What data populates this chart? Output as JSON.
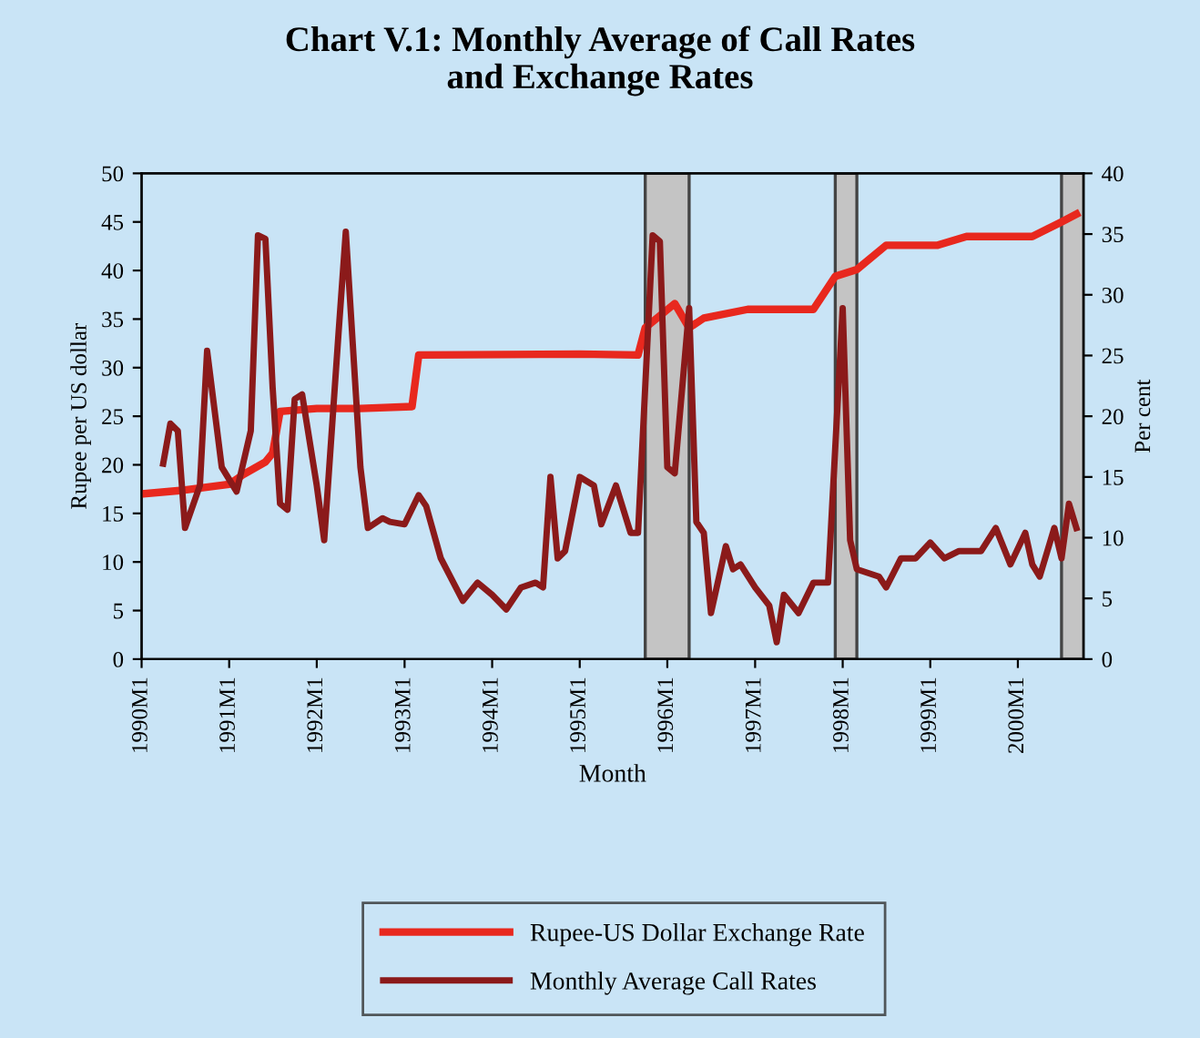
{
  "chart_data": {
    "type": "line",
    "title": "Chart V.1: Monthly Average of Call Rates\nand Exchange Rates",
    "xlabel": "Month",
    "ylabel": "Rupee per US dollar",
    "y2label": "Per cent",
    "xlim": [
      "1990-01",
      "2000-10"
    ],
    "xticks": [
      {
        "value": "1990-01",
        "label": "1990M1"
      },
      {
        "value": "1991-01",
        "label": "1991M1"
      },
      {
        "value": "1992-01",
        "label": "1992M1"
      },
      {
        "value": "1993-01",
        "label": "1993M1"
      },
      {
        "value": "1994-01",
        "label": "1994M1"
      },
      {
        "value": "1995-01",
        "label": "1995M1"
      },
      {
        "value": "1996-01",
        "label": "1996M1"
      },
      {
        "value": "1997-01",
        "label": "1997M1"
      },
      {
        "value": "1998-01",
        "label": "1998M1"
      },
      {
        "value": "1999-01",
        "label": "1999M1"
      },
      {
        "value": "2000-01",
        "label": "2000M1"
      }
    ],
    "ylim": [
      0,
      50
    ],
    "yticks": [
      0,
      5,
      10,
      15,
      20,
      25,
      30,
      35,
      40,
      45,
      50
    ],
    "y2lim": [
      0,
      40
    ],
    "y2ticks": [
      0,
      5,
      10,
      15,
      20,
      25,
      30,
      35,
      40
    ],
    "grid": false,
    "legend": "bottom",
    "marker": "none",
    "line_style": "solid",
    "bands": [
      {
        "axis": "x",
        "from": "1995-10",
        "to": "1996-04",
        "color": "#c4c4c4"
      },
      {
        "axis": "x",
        "from": "1997-12",
        "to": "1998-03",
        "color": "#c4c4c4"
      },
      {
        "axis": "x",
        "from": "2000-07",
        "to": "2000-10",
        "color": "#c4c4c4"
      }
    ],
    "series": [
      {
        "name": "Rupee-US Dollar Exchange Rate",
        "color": "#e8281e",
        "axis": "y",
        "x": [
          "1990-01",
          "1990-07",
          "1991-01",
          "1991-03",
          "1991-06",
          "1991-07",
          "1991-08",
          "1992-01",
          "1992-07",
          "1993-02",
          "1993-03",
          "1995-01",
          "1995-09",
          "1995-10",
          "1996-02",
          "1996-04",
          "1996-06",
          "1996-12",
          "1997-09",
          "1997-12",
          "1998-03",
          "1998-07",
          "1999-02",
          "1999-06",
          "2000-03",
          "2000-07",
          "2000-09"
        ],
        "values": [
          17.0,
          17.4,
          18.0,
          19.0,
          20.3,
          21.2,
          25.5,
          25.8,
          25.8,
          26.0,
          31.3,
          31.4,
          31.3,
          34.1,
          36.6,
          34.1,
          35.1,
          36.0,
          36.0,
          39.4,
          40.1,
          42.6,
          42.6,
          43.5,
          43.5,
          45.0,
          45.8
        ]
      },
      {
        "name": "Monthly Average Call Rates",
        "color": "#8b1a1a",
        "axis": "y2",
        "x": [
          "1990-04",
          "1990-05",
          "1990-06",
          "1990-07",
          "1990-09",
          "1990-10",
          "1990-12",
          "1991-02",
          "1991-04",
          "1991-05",
          "1991-06",
          "1991-07",
          "1991-08",
          "1991-09",
          "1991-10",
          "1991-11",
          "1992-01",
          "1992-02",
          "1992-04",
          "1992-05",
          "1992-07",
          "1992-08",
          "1992-10",
          "1992-11",
          "1993-01",
          "1993-03",
          "1993-04",
          "1993-06",
          "1993-09",
          "1993-11",
          "1994-01",
          "1994-03",
          "1994-05",
          "1994-07",
          "1994-08",
          "1994-09",
          "1994-10",
          "1994-11",
          "1995-01",
          "1995-03",
          "1995-04",
          "1995-06",
          "1995-08",
          "1995-09",
          "1995-11",
          "1995-12",
          "1996-01",
          "1996-02",
          "1996-04",
          "1996-05",
          "1996-06",
          "1996-07",
          "1996-09",
          "1996-10",
          "1996-11",
          "1997-01",
          "1997-03",
          "1997-04",
          "1997-05",
          "1997-07",
          "1997-09",
          "1997-11",
          "1998-01",
          "1998-02",
          "1998-03",
          "1998-06",
          "1998-07",
          "1998-09",
          "1998-11",
          "1999-01",
          "1999-03",
          "1999-05",
          "1999-08",
          "1999-10",
          "1999-12",
          "2000-02",
          "2000-03",
          "2000-04",
          "2000-06",
          "2000-07",
          "2000-08",
          "2000-09"
        ],
        "values": [
          16.1,
          19.4,
          18.8,
          10.8,
          14.3,
          25.4,
          15.8,
          13.8,
          18.8,
          34.9,
          34.6,
          22.4,
          12.8,
          12.3,
          21.4,
          21.8,
          14.3,
          9.8,
          26.9,
          35.2,
          15.8,
          10.8,
          11.6,
          11.3,
          11.1,
          13.5,
          12.6,
          8.3,
          4.8,
          6.3,
          5.3,
          4.1,
          5.9,
          6.3,
          5.9,
          15.0,
          8.3,
          8.9,
          15.0,
          14.3,
          11.1,
          14.3,
          10.4,
          10.4,
          34.9,
          34.4,
          15.8,
          15.3,
          28.9,
          11.3,
          10.4,
          3.8,
          9.3,
          7.4,
          7.8,
          5.9,
          4.4,
          1.4,
          5.3,
          3.8,
          6.3,
          6.3,
          28.9,
          9.8,
          7.4,
          6.8,
          5.9,
          8.3,
          8.3,
          9.6,
          8.3,
          8.9,
          8.9,
          10.8,
          7.8,
          10.4,
          7.8,
          6.8,
          10.8,
          8.3,
          12.8,
          10.8
        ]
      }
    ]
  }
}
